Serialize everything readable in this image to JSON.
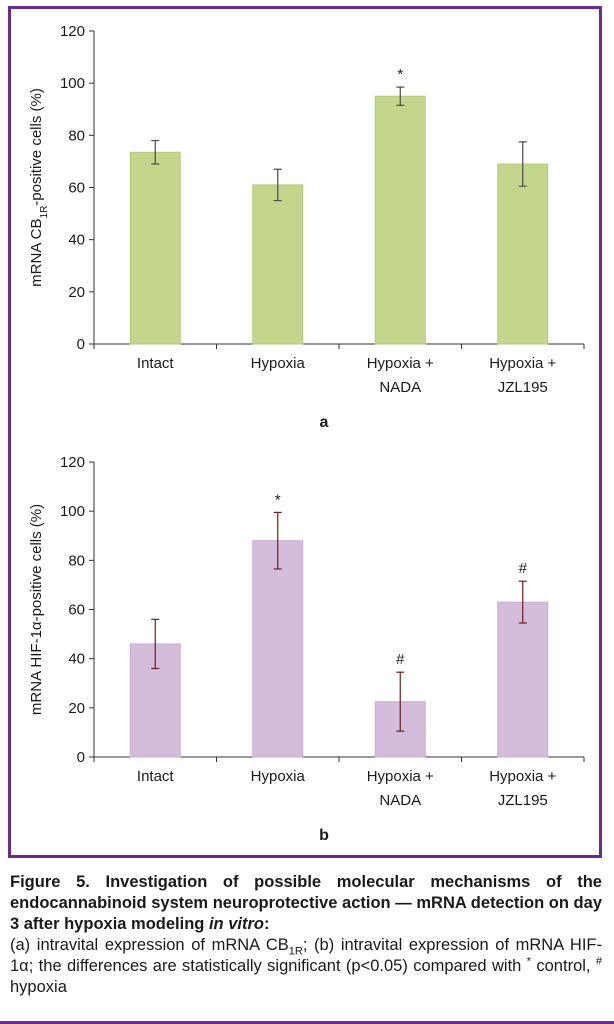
{
  "chart_data": [
    {
      "type": "bar",
      "panel": "a",
      "ylabel": {
        "pre": "mRNA CB",
        "sub": "1R",
        "post": "-positive cells (%)"
      },
      "ylim": [
        0,
        120
      ],
      "yticks": [
        0,
        20,
        40,
        60,
        80,
        100,
        120
      ],
      "categories": [
        [
          "Intact"
        ],
        [
          "Hypoxia"
        ],
        [
          "Hypoxia +",
          "NADA"
        ],
        [
          "Hypoxia +",
          "JZL195"
        ]
      ],
      "values": [
        73.5,
        61,
        95,
        69
      ],
      "errors": [
        4.5,
        6,
        3.5,
        8.5
      ],
      "marks": [
        "",
        "",
        "*",
        ""
      ],
      "bar_color": "#c3d68b",
      "bar_edge": "#b5ca7a",
      "error_color": "#4a4a4a",
      "grid": false
    },
    {
      "type": "bar",
      "panel": "b",
      "ylabel": {
        "pre": "mRNA HIF-1α-positive cells (%)",
        "sub": "",
        "post": ""
      },
      "ylim": [
        0,
        120
      ],
      "yticks": [
        0,
        20,
        40,
        60,
        80,
        100,
        120
      ],
      "categories": [
        [
          "Intact"
        ],
        [
          "Hypoxia"
        ],
        [
          "Hypoxia +",
          "NADA"
        ],
        [
          "Hypoxia +",
          "JZL195"
        ]
      ],
      "values": [
        46,
        88,
        22.5,
        63
      ],
      "errors": [
        10,
        11.5,
        12,
        8.5
      ],
      "marks": [
        "",
        "*",
        "#",
        "#"
      ],
      "bar_color": "#d4bcdb",
      "bar_edge": "#c9aed2",
      "error_color": "#6e1f1f",
      "grid": false
    }
  ],
  "caption": {
    "title_main": "Figure 5. Investigation of possible molecular mechanisms of the endocannabinoid system neuroprotective action — mRNA detection on day 3 after hypoxia modeling ",
    "title_italic": "in vitro",
    "title_end": ":",
    "body_1": "(a) intravital expression of mRNA CB",
    "body_sub": "1R",
    "body_2": "; (b) intravital expression of mRNA HIF-1α; the differences are statistically significant (p<0.05) compared with ",
    "sup_star": "*",
    "body_3": " control, ",
    "sup_hash": "#",
    "body_4": " hypoxia"
  },
  "colors": {
    "frame": "#6b2a8c"
  }
}
